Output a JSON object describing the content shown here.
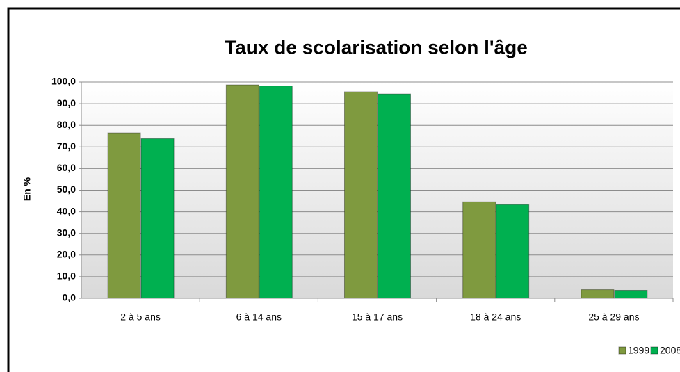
{
  "chart_data": {
    "type": "bar",
    "title": "Taux de scolarisation selon l'âge",
    "y_label": "En %",
    "categories": [
      "2 à 5 ans",
      "6 à 14 ans",
      "15 à 17 ans",
      "18 à 24 ans",
      "25 à 29 ans"
    ],
    "series": [
      {
        "name": "1999",
        "color": "#7f9a3f",
        "values": [
          76.5,
          98.7,
          95.5,
          44.6,
          4.0
        ]
      },
      {
        "name": "2008",
        "color": "#00b050",
        "values": [
          73.8,
          98.2,
          94.5,
          43.3,
          3.7
        ]
      }
    ],
    "ylim": [
      0,
      100
    ],
    "yticks": [
      {
        "value": 0,
        "label": "0,0"
      },
      {
        "value": 10,
        "label": "10,0"
      },
      {
        "value": 20,
        "label": "20,0"
      },
      {
        "value": 30,
        "label": "30,0"
      },
      {
        "value": 40,
        "label": "40,0"
      },
      {
        "value": 50,
        "label": "50,0"
      },
      {
        "value": 60,
        "label": "60,0"
      },
      {
        "value": 70,
        "label": "70,0"
      },
      {
        "value": 80,
        "label": "80,0"
      },
      {
        "value": 90,
        "label": "90,0"
      },
      {
        "value": 100,
        "label": "100,0"
      }
    ],
    "grid": true,
    "legend": "bottom-right"
  }
}
